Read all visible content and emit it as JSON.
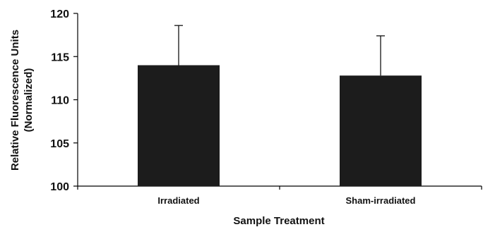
{
  "chart_data": {
    "type": "bar",
    "title": "",
    "xlabel": "Sample Treatment",
    "ylabel": "Relative Fluorescence Units",
    "ylabel_line2": "(Normalized)",
    "categories": [
      "Irradiated",
      "Sham-irradiated"
    ],
    "values": [
      114.0,
      112.8
    ],
    "error_upper": [
      118.6,
      117.4
    ],
    "ylim": [
      100,
      120
    ],
    "yticks": [
      100,
      105,
      110,
      115,
      120
    ],
    "grid": false,
    "legend": "none",
    "colors": {
      "bar": "#1c1c1c",
      "axis": "#000000",
      "text": "#111111"
    }
  }
}
